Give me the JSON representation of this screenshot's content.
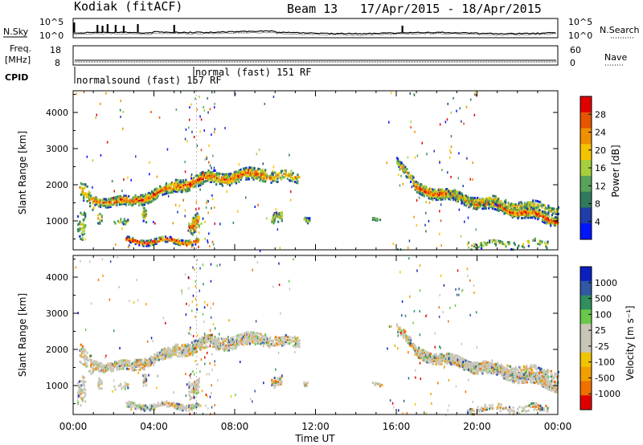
{
  "header": {
    "station": "Kodiak (fitACF)",
    "beam": "Beam 13",
    "dates": "17/Apr/2015 - 18/Apr/2015"
  },
  "sky_panel": {
    "left_label": "N.Sky",
    "right_label": "N.Search",
    "left_ticks": [
      "10^5",
      "10^0"
    ],
    "right_ticks": [
      "10^5",
      "10^0"
    ]
  },
  "freq_panel": {
    "left_label_1": "Freq.",
    "left_label_2": "[MHz]",
    "right_label": "Nave",
    "left_ticks": [
      "18",
      "8"
    ],
    "right_ticks": [
      "60",
      "0"
    ]
  },
  "cpid_panel": {
    "label": "CPID",
    "program_1": "normalsound (fast) 157 RF",
    "program_2": "normal (fast) 151 RF"
  },
  "colors": {
    "power_scale": [
      "#0016ff",
      "#1f3ea8",
      "#2f7a5c",
      "#58a35a",
      "#a7cf3d",
      "#f5c400",
      "#f09000",
      "#e65500",
      "#e10000"
    ],
    "velocity_scale": [
      "#e00000",
      "#f07000",
      "#f2a000",
      "#f0c400",
      "#c9c6b8",
      "#c9c6b8",
      "#6ac94a",
      "#2f8f5e",
      "#3157a5",
      "#0b1fbf"
    ]
  },
  "chart_data": [
    {
      "type": "heatmap",
      "name": "power",
      "ylabel": "Slant Range [km]",
      "yticks": [
        "1000",
        "2000",
        "3000",
        "4000"
      ],
      "ylim": [
        200,
        4600
      ],
      "xlim": [
        0,
        24
      ],
      "colorbar_label": "Power [dB]",
      "colorbar_ticks": [
        "4",
        "8",
        "12",
        "16",
        "20",
        "24",
        "28"
      ],
      "colorbar_range": [
        0,
        32
      ]
    },
    {
      "type": "heatmap",
      "name": "velocity",
      "ylabel": "Slant Range [km]",
      "yticks": [
        "1000",
        "2000",
        "3000",
        "4000"
      ],
      "ylim": [
        200,
        4600
      ],
      "xlim": [
        0,
        24
      ],
      "xlabel": "Time UT",
      "xticks": [
        "00:00",
        "04:00",
        "08:00",
        "12:00",
        "16:00",
        "20:00",
        "00:00"
      ],
      "colorbar_label": "Velocity [m s⁻¹]",
      "colorbar_ticks": [
        "1000",
        "500",
        "100",
        "25",
        "-25",
        "-100",
        "-500",
        "-1000"
      ]
    }
  ]
}
